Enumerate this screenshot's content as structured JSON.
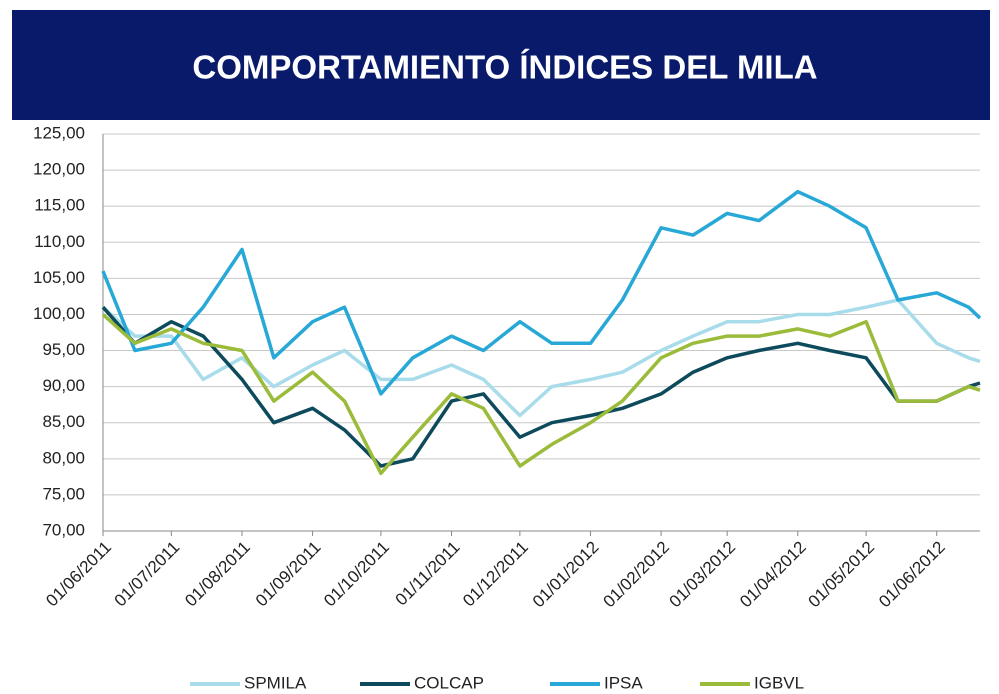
{
  "chart_data": {
    "type": "line",
    "title": "COMPORTAMIENTO ÍNDICES DEL MILA",
    "x": [
      "01/06/2011",
      "15/06/2011",
      "01/07/2011",
      "15/07/2011",
      "01/08/2011",
      "15/08/2011",
      "01/09/2011",
      "15/09/2011",
      "01/10/2011",
      "15/10/2011",
      "01/11/2011",
      "15/11/2011",
      "01/12/2011",
      "15/12/2011",
      "01/01/2012",
      "15/01/2012",
      "01/02/2012",
      "15/02/2012",
      "01/03/2012",
      "15/03/2012",
      "01/04/2012",
      "15/04/2012",
      "01/05/2012",
      "15/05/2012",
      "01/06/2012",
      "15/06/2012",
      "20/06/2012"
    ],
    "xlim": [
      "01/06/2011",
      "20/06/2012"
    ],
    "xticks": [
      "01/06/2011",
      "01/07/2011",
      "01/08/2011",
      "01/09/2011",
      "01/10/2011",
      "01/11/2011",
      "01/12/2011",
      "01/01/2012",
      "01/02/2012",
      "01/03/2012",
      "01/04/2012",
      "01/05/2012",
      "01/06/2012"
    ],
    "ylim": [
      70,
      125
    ],
    "yticks": [
      {
        "value": 70,
        "label": "70,00"
      },
      {
        "value": 75,
        "label": "75,00"
      },
      {
        "value": 80,
        "label": "80,00"
      },
      {
        "value": 85,
        "label": "85,00"
      },
      {
        "value": 90,
        "label": "90,00"
      },
      {
        "value": 95,
        "label": "95,00"
      },
      {
        "value": 100,
        "label": "100,00"
      },
      {
        "value": 105,
        "label": "105,00"
      },
      {
        "value": 110,
        "label": "110,00"
      },
      {
        "value": 115,
        "label": "115,00"
      },
      {
        "value": 120,
        "label": "120,00"
      },
      {
        "value": 125,
        "label": "125,00"
      }
    ],
    "grid": true,
    "legend": "bottom",
    "series": [
      {
        "name": "SPMILA",
        "color": "#a8dcea",
        "values": [
          101,
          97,
          97,
          91,
          94,
          90,
          93,
          95,
          91,
          91,
          93,
          91,
          86,
          90,
          91,
          92,
          95,
          97,
          99,
          99,
          100,
          100,
          101,
          102,
          96,
          94,
          93.5
        ]
      },
      {
        "name": "COLCAP",
        "color": "#0d4a5c",
        "values": [
          101,
          96,
          99,
          97,
          91,
          85,
          87,
          84,
          79,
          80,
          88,
          89,
          83,
          85,
          86,
          87,
          89,
          92,
          94,
          95,
          96,
          95,
          94,
          88,
          88,
          90,
          90.5
        ]
      },
      {
        "name": "IPSA",
        "color": "#27a8d6",
        "values": [
          106,
          95,
          96,
          101,
          109,
          94,
          99,
          101,
          89,
          94,
          97,
          95,
          99,
          96,
          96,
          102,
          112,
          111,
          114,
          113,
          117,
          115,
          112,
          102,
          103,
          101,
          99.5
        ]
      },
      {
        "name": "IGBVL",
        "color": "#9bbb3a",
        "values": [
          100,
          96,
          98,
          96,
          95,
          88,
          92,
          88,
          78,
          83,
          89,
          87,
          79,
          82,
          85,
          88,
          94,
          96,
          97,
          97,
          98,
          97,
          99,
          88,
          88,
          90,
          89.5
        ]
      }
    ]
  }
}
